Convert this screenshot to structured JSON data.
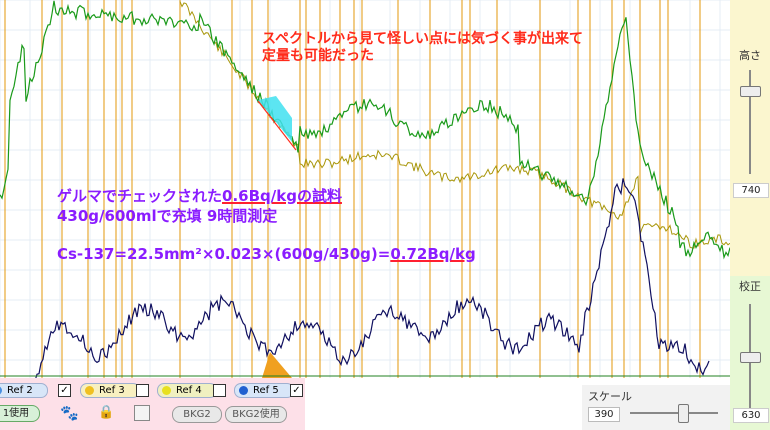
{
  "annotations": {
    "red_line1": "スペクトルから見て怪しい点には気づく事が出来て",
    "red_line2": "定量も可能だった",
    "purple_line1_pre": "ゲルマでチェックされた",
    "purple_line1_ul": "0.6Bq/kgの試料",
    "purple_line2": "430g/600mlで充填  9時間測定",
    "formula_pre": "Cs-137=22.5mm²×0.023×(600g/430g)=",
    "formula_ul": "0.72Bq/kg"
  },
  "right_panel": {
    "height_label": "高さ",
    "height_value": "740",
    "calib_label": "校正",
    "calib_value": "630"
  },
  "refs": [
    {
      "label": "Ref 2",
      "checked": true,
      "color": "#4a90e2"
    },
    {
      "label": "Ref 3",
      "checked": false,
      "color": "#f0c020"
    },
    {
      "label": "Ref 4",
      "checked": false,
      "color": "#e8e020"
    },
    {
      "label": "Ref 5",
      "checked": true,
      "color": "#2060d0"
    }
  ],
  "buttons": {
    "bkg1_use": "1使用",
    "bkg2": "BKG2",
    "bkg2_use": "BKG2使用"
  },
  "scale": {
    "label": "スケール",
    "value": "390"
  },
  "colors": {
    "grid_orange": "#e6a020",
    "green_series": "#1a9a1a",
    "olive_series": "#a8960a",
    "navy_series": "#101060",
    "highlight_cyan": "#40e0f0",
    "peak_orange": "#f0a020"
  }
}
